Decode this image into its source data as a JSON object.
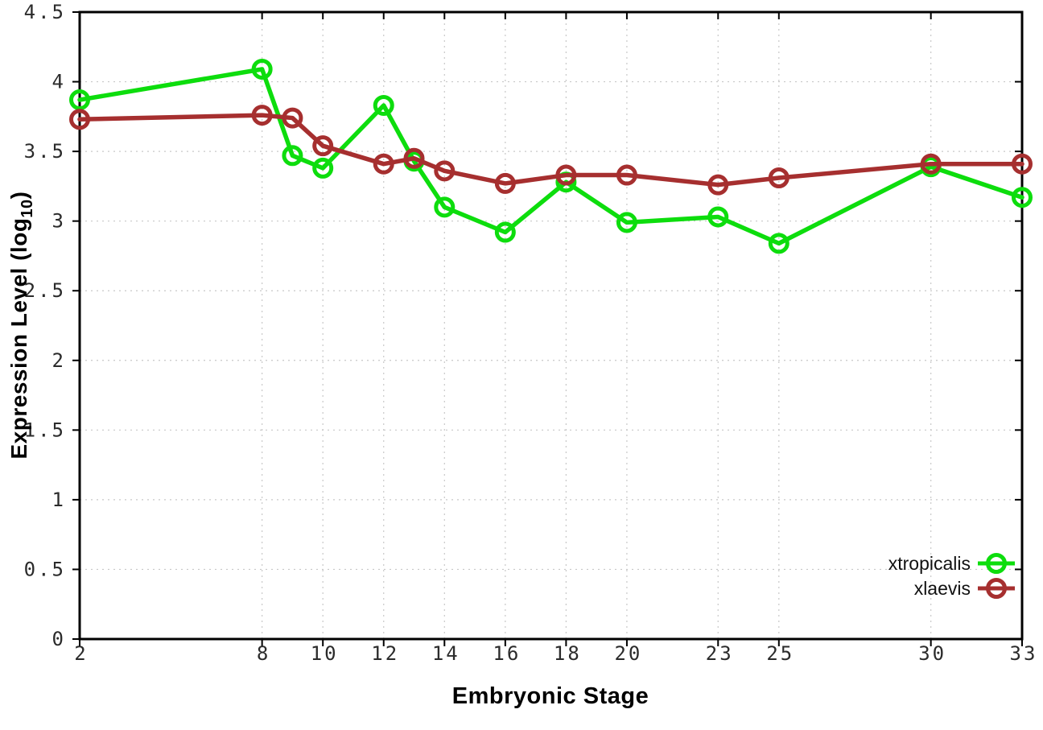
{
  "chart_data": {
    "type": "line",
    "title": "",
    "xlabel": "Embryonic Stage",
    "ylabel": {
      "prefix": "Expression Level (log",
      "subscript": "10",
      "suffix": ")"
    },
    "xlim": [
      2,
      33
    ],
    "ylim": [
      0,
      4.5
    ],
    "x_tick_values": [
      2,
      8,
      10,
      12,
      14,
      16,
      18,
      20,
      23,
      25,
      30,
      33
    ],
    "x_tick_labels": [
      "2",
      "8",
      "10",
      "12",
      "14",
      "16",
      "18",
      "20",
      "23",
      "25",
      "30",
      "33"
    ],
    "y_tick_values": [
      0,
      0.5,
      1,
      1.5,
      2,
      2.5,
      3,
      3.5,
      4,
      4.5
    ],
    "y_tick_labels": [
      "0",
      "0.5",
      "1",
      "1.5",
      "2",
      "2.5",
      "3",
      "3.5",
      "4",
      "4.5"
    ],
    "grid": true,
    "legend_position": "inside-bottom-right",
    "marker": "open-circle",
    "x": [
      2,
      8,
      9,
      10,
      12,
      13,
      14,
      16,
      18,
      20,
      23,
      25,
      30,
      33
    ],
    "series": [
      {
        "name": "xtropicalis",
        "color": "#0ddd0d",
        "values": [
          3.87,
          4.09,
          3.47,
          3.38,
          3.83,
          3.43,
          3.1,
          2.92,
          3.28,
          2.99,
          3.03,
          2.84,
          3.39,
          3.17
        ]
      },
      {
        "name": "xlaevis",
        "color": "#a62f2f",
        "values": [
          3.73,
          3.76,
          3.74,
          3.54,
          3.41,
          3.45,
          3.36,
          3.27,
          3.33,
          3.33,
          3.26,
          3.31,
          3.41,
          3.41
        ]
      }
    ]
  },
  "style": {
    "background": "#ffffff",
    "grid_color": "#c8c8c8",
    "axis_color": "#000000",
    "tick_label_color": "#2b2b2b",
    "legend_text_color": "#111111"
  }
}
